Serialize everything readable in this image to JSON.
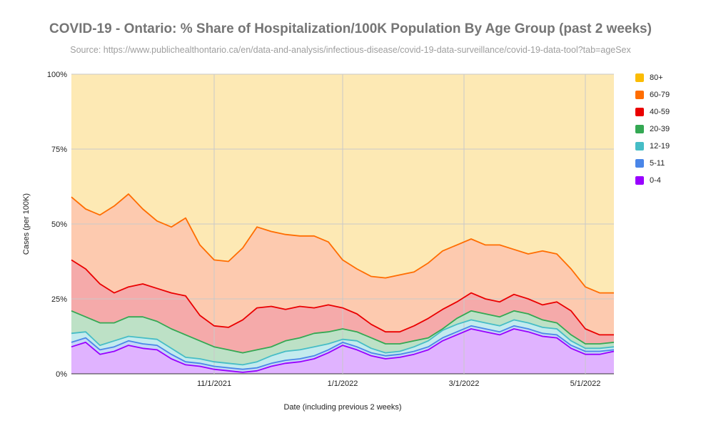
{
  "chart_data": {
    "type": "area",
    "stacked": true,
    "title": "COVID-19 -  Ontario: % Share of Hospitalization/100K Population By Age Group (past 2 weeks)",
    "subtitle": "Source: https://www.publichealthontario.ca/en/data-and-analysis/infectious-disease/covid-19-data-surveillance/covid-19-data-tool?tab=ageSex",
    "xlabel": "Date (including previous 2 weeks)",
    "ylabel": "Cases (per 100K)",
    "ylim": [
      0,
      100
    ],
    "y_ticks": [
      "0%",
      "25%",
      "50%",
      "75%",
      "100%"
    ],
    "x_ticks": [
      {
        "label": "11/1/2021",
        "week": 10
      },
      {
        "label": "1/1/2022",
        "week": 19
      },
      {
        "label": "3/1/2022",
        "week": 27.5
      },
      {
        "label": "5/1/2022",
        "week": 36
      }
    ],
    "x": [
      0,
      1,
      2,
      3,
      4,
      5,
      6,
      7,
      8,
      9,
      10,
      11,
      12,
      13,
      14,
      15,
      16,
      17,
      18,
      19,
      20,
      21,
      22,
      23,
      24,
      25,
      26,
      27,
      28,
      29,
      30,
      31,
      32,
      33,
      34,
      35,
      36,
      37,
      38
    ],
    "legend_position": "right",
    "series": [
      {
        "name": "0-4",
        "color": "#9900ff",
        "fill": "#e0b3ff",
        "values": [
          9,
          10.5,
          6.5,
          7.5,
          9.5,
          8.5,
          8,
          5,
          3,
          2.5,
          1.5,
          1,
          0.5,
          1,
          2.5,
          3.5,
          4,
          5,
          7,
          9.5,
          8,
          6,
          5,
          5.5,
          6.5,
          8,
          11,
          13,
          15,
          14,
          13,
          15,
          14,
          12.5,
          12,
          8.5,
          6.5,
          6.5,
          7.5
        ]
      },
      {
        "name": "5-11",
        "color": "#4a86e8",
        "fill": "#c5d7f8",
        "values": [
          10.5,
          12,
          8,
          9,
          11,
          10,
          9.5,
          6.5,
          4,
          3.5,
          2.5,
          2,
          1.5,
          2,
          3.5,
          4.5,
          5,
          6,
          8,
          10.5,
          9,
          7,
          6,
          6.5,
          7.5,
          9,
          12,
          14,
          16,
          15,
          14,
          16,
          15,
          13.5,
          13,
          9.5,
          7.5,
          7.5,
          8
        ]
      },
      {
        "name": "12-19",
        "color": "#46bdc6",
        "fill": "#c3ebee",
        "values": [
          13.5,
          14,
          9.5,
          11,
          12.5,
          12,
          11.5,
          8.5,
          5.5,
          5,
          4,
          3.5,
          3,
          4,
          6,
          7.5,
          8,
          9,
          10,
          11.5,
          11,
          8.5,
          7,
          7.5,
          9,
          11,
          14.5,
          16.5,
          18,
          17,
          16,
          18,
          17,
          15.5,
          15,
          11,
          8.5,
          8.5,
          9
        ]
      },
      {
        "name": "20-39",
        "color": "#34a853",
        "fill": "#bde1c6",
        "values": [
          21,
          19,
          17,
          17,
          19,
          19,
          17.5,
          15,
          13,
          11,
          9,
          8,
          7,
          8,
          9,
          11,
          12,
          13.5,
          14,
          15,
          14,
          12,
          10,
          10,
          11,
          12,
          15,
          18.5,
          21,
          20,
          19,
          21,
          20,
          18,
          17,
          13,
          10,
          10,
          10.5
        ]
      },
      {
        "name": "40-59",
        "color": "#ea0000",
        "fill": "#f5aaaa",
        "values": [
          38,
          35,
          30,
          27,
          29,
          30,
          28.5,
          27,
          26,
          19.5,
          16,
          15.5,
          18,
          22,
          22.5,
          21.5,
          22.5,
          22,
          23,
          22,
          20,
          16.5,
          14,
          14,
          16,
          18.5,
          21.5,
          24,
          27,
          25,
          24,
          26.5,
          25,
          23,
          24,
          21,
          15,
          13,
          13
        ]
      },
      {
        "name": "60-79",
        "color": "#ff6d01",
        "fill": "#fdcaaf",
        "values": [
          59,
          55,
          53,
          56,
          60,
          55,
          51,
          49,
          52,
          43,
          38,
          37.5,
          42,
          49,
          47.5,
          46.5,
          46,
          46,
          44,
          38,
          35,
          32.5,
          32,
          33,
          34,
          37,
          41,
          43,
          45,
          43,
          43,
          41.5,
          40,
          41,
          40,
          35,
          29,
          27,
          27
        ]
      },
      {
        "name": "80+",
        "color": "#fbbc04",
        "fill": "#fde9b4",
        "values": [
          100,
          100,
          100,
          100,
          100,
          100,
          100,
          100,
          100,
          100,
          100,
          100,
          100,
          100,
          100,
          100,
          100,
          100,
          100,
          100,
          100,
          100,
          100,
          100,
          100,
          100,
          100,
          100,
          100,
          100,
          100,
          100,
          100,
          100,
          100,
          100,
          100,
          100,
          100
        ]
      }
    ]
  }
}
